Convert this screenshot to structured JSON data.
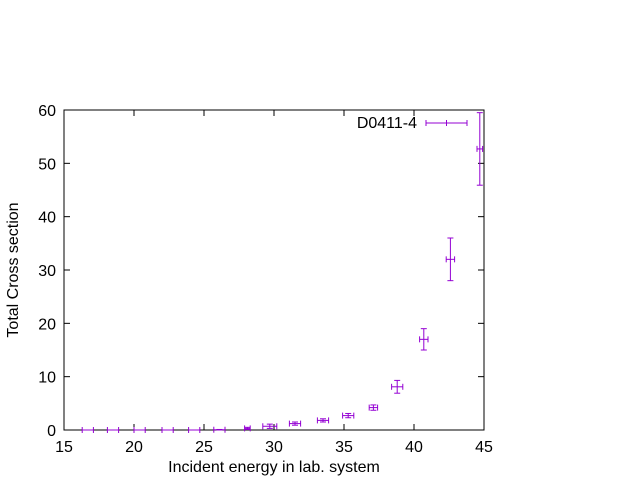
{
  "chart_data": {
    "type": "scatter",
    "title": "",
    "xlabel": "Incident energy in lab. system",
    "ylabel": "Total Cross section",
    "xlim": [
      15,
      45
    ],
    "ylim": [
      0,
      60
    ],
    "xticks": [
      15,
      20,
      25,
      30,
      35,
      40,
      45
    ],
    "yticks": [
      0,
      10,
      20,
      30,
      40,
      50,
      60
    ],
    "xtick_labels": [
      "15",
      "20",
      "25",
      "30",
      "35",
      "40",
      "45"
    ],
    "ytick_labels": [
      "0",
      "10",
      "20",
      "30",
      "40",
      "50",
      "60"
    ],
    "grid": false,
    "legend_position": "top-right",
    "colors": {
      "series": "#9400d3",
      "axes": "#000000"
    },
    "series": [
      {
        "name": "D0411-4",
        "points": [
          {
            "x": 16.7,
            "y": 0.0,
            "xerr": 0.4,
            "yerr": 0.0
          },
          {
            "x": 18.5,
            "y": 0.0,
            "xerr": 0.4,
            "yerr": 0.0
          },
          {
            "x": 20.4,
            "y": 0.0,
            "xerr": 0.4,
            "yerr": 0.0
          },
          {
            "x": 22.4,
            "y": 0.0,
            "xerr": 0.4,
            "yerr": 0.0
          },
          {
            "x": 24.3,
            "y": 0.0,
            "xerr": 0.4,
            "yerr": 0.0
          },
          {
            "x": 26.1,
            "y": 0.05,
            "xerr": 0.4,
            "yerr": 0.05
          },
          {
            "x": 28.1,
            "y": 0.3,
            "xerr": 0.2,
            "yerr": 0.2
          },
          {
            "x": 29.7,
            "y": 0.7,
            "xerr": 0.5,
            "yerr": 0.4
          },
          {
            "x": 31.5,
            "y": 1.2,
            "xerr": 0.4,
            "yerr": 0.3
          },
          {
            "x": 33.5,
            "y": 1.8,
            "xerr": 0.4,
            "yerr": 0.3
          },
          {
            "x": 35.3,
            "y": 2.7,
            "xerr": 0.4,
            "yerr": 0.4
          },
          {
            "x": 37.1,
            "y": 4.2,
            "xerr": 0.3,
            "yerr": 0.5
          },
          {
            "x": 38.8,
            "y": 8.1,
            "xerr": 0.4,
            "yerr": 1.2
          },
          {
            "x": 40.7,
            "y": 17.0,
            "xerr": 0.3,
            "yerr": 2.0
          },
          {
            "x": 42.6,
            "y": 32.0,
            "xerr": 0.3,
            "yerr": 4.0
          },
          {
            "x": 44.7,
            "y": 52.7,
            "xerr": 0.2,
            "yerr": 6.8
          }
        ]
      }
    ]
  }
}
